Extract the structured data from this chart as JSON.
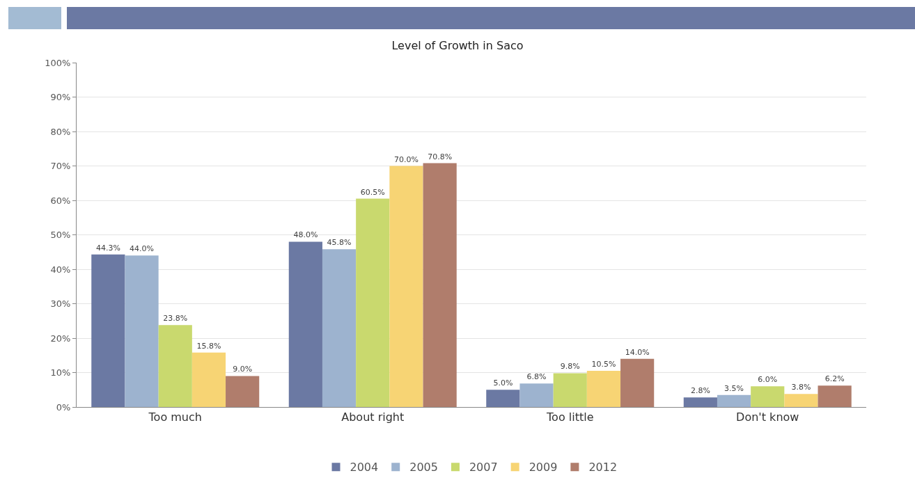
{
  "chart_data": {
    "type": "bar",
    "title": "Level of Growth in Saco",
    "categories": [
      "Too much",
      "About right",
      "Too little",
      "Don't know"
    ],
    "series": [
      {
        "name": "2004",
        "color": "#6b79a3",
        "values": [
          44.3,
          48.0,
          5.0,
          2.8
        ],
        "value_labels": [
          "44.3%",
          "48.0%",
          "5.0%",
          "2.8%"
        ]
      },
      {
        "name": "2005",
        "color": "#9db3cf",
        "values": [
          44.0,
          45.8,
          6.8,
          3.5
        ],
        "value_labels": [
          "44.0%",
          "45.8%",
          "6.8%",
          "3.5%"
        ]
      },
      {
        "name": "2007",
        "color": "#c9d96e",
        "values": [
          23.8,
          60.5,
          9.8,
          6.0
        ],
        "value_labels": [
          "23.8%",
          "60.5%",
          "9.8%",
          "6.0%"
        ]
      },
      {
        "name": "2009",
        "color": "#f7d474",
        "values": [
          15.8,
          70.0,
          10.5,
          3.8
        ],
        "value_labels": [
          "15.8%",
          "70.0%",
          "10.5%",
          "3.8%"
        ]
      },
      {
        "name": "2012",
        "color": "#b07d6c",
        "values": [
          9.0,
          70.8,
          14.0,
          6.2
        ],
        "value_labels": [
          "9.0%",
          "70.8%",
          "14.0%",
          "6.2%"
        ]
      }
    ],
    "ylim": [
      0,
      100
    ],
    "yticks": [
      {
        "value": 0,
        "label": "0%"
      },
      {
        "value": 10,
        "label": "10%"
      },
      {
        "value": 20,
        "label": "20%"
      },
      {
        "value": 30,
        "label": "30%"
      },
      {
        "value": 40,
        "label": "40%"
      },
      {
        "value": 50,
        "label": "50%"
      },
      {
        "value": 60,
        "label": "60%"
      },
      {
        "value": 70,
        "label": "70%"
      },
      {
        "value": 80,
        "label": "80%"
      },
      {
        "value": 90,
        "label": "90%"
      },
      {
        "value": 100,
        "label": "100%"
      }
    ],
    "grid": "y",
    "legend": "bottom"
  }
}
